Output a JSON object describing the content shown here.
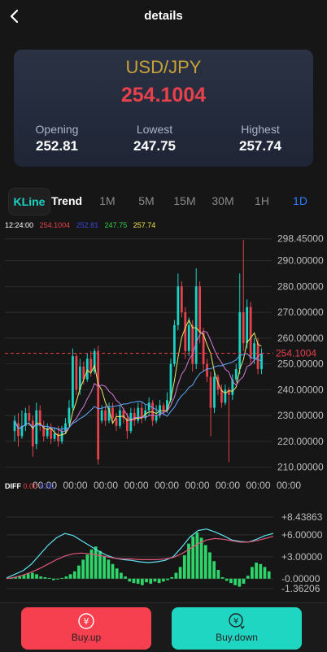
{
  "header": {
    "title": "details"
  },
  "quote": {
    "pair": "USD/JPY",
    "price": "254.1004",
    "opening_label": "Opening",
    "opening": "252.81",
    "lowest_label": "Lowest",
    "lowest": "247.75",
    "highest_label": "Highest",
    "highest": "257.74"
  },
  "tabs": [
    "KLine",
    "Trend",
    "1M",
    "5M",
    "15M",
    "30M",
    "1H",
    "1D"
  ],
  "info": {
    "time": "12:24:00",
    "v1": "254.1004",
    "v2": "252.81",
    "v3": "247.75",
    "v4": "257.74"
  },
  "price_chart": {
    "y_ticks": [
      "298.45000",
      "290.00000",
      "280.00000",
      "270.00000",
      "260.00000",
      "250.00000",
      "240.00000",
      "230.00000",
      "220.00000",
      "210.00000"
    ],
    "last_price_label": "254.1004",
    "x_ticks": [
      "00:00",
      "00:00",
      "00:00",
      "00:00",
      "00:00",
      "00:00",
      "00:00",
      "00:00",
      "00:00"
    ]
  },
  "diff_chart": {
    "label": "DIFF",
    "label_values": [
      "0.00",
      "0.00"
    ],
    "y_ticks": [
      "+8.43863",
      "+6.00000",
      "+3.00000",
      "-0.00000",
      "-1.36206"
    ]
  },
  "buttons": {
    "up": "Buy.up",
    "down": "Buy.down"
  },
  "colors": {
    "up": "#e8414b",
    "down": "#19d3c5",
    "gold": "#c9a23a",
    "accent": "#19d3c5"
  },
  "chart_data": [
    {
      "type": "candlestick",
      "yrange": [
        208,
        299
      ],
      "last_price": 254.1004,
      "candles": [
        [
          224,
          228,
          220,
          230
        ],
        [
          227,
          222,
          218,
          231
        ],
        [
          222,
          226,
          221,
          232
        ],
        [
          226,
          231,
          224,
          233
        ],
        [
          231,
          228,
          226,
          234
        ],
        [
          228,
          218,
          214,
          230
        ],
        [
          219,
          232,
          217,
          235
        ],
        [
          232,
          226,
          224,
          234
        ],
        [
          226,
          222,
          220,
          228
        ],
        [
          222,
          225,
          221,
          227
        ],
        [
          225,
          221,
          219,
          227
        ],
        [
          221,
          223,
          220,
          225
        ],
        [
          223,
          220,
          218,
          226
        ],
        [
          220,
          224,
          219,
          226
        ],
        [
          224,
          227,
          223,
          229
        ],
        [
          227,
          233,
          226,
          236
        ],
        [
          233,
          253,
          232,
          256
        ],
        [
          253,
          240,
          238,
          254
        ],
        [
          240,
          249,
          238,
          252
        ],
        [
          249,
          244,
          242,
          251
        ],
        [
          244,
          252,
          243,
          254
        ],
        [
          252,
          247,
          245,
          255
        ],
        [
          247,
          255,
          246,
          256
        ],
        [
          255,
          213,
          211,
          257
        ],
        [
          228,
          232,
          227,
          234
        ],
        [
          232,
          228,
          226,
          234
        ],
        [
          228,
          233,
          227,
          235
        ],
        [
          233,
          229,
          227,
          235
        ],
        [
          229,
          226,
          224,
          231
        ],
        [
          226,
          232,
          225,
          234
        ],
        [
          232,
          229,
          227,
          233
        ],
        [
          229,
          224,
          221,
          231
        ],
        [
          224,
          231,
          223,
          233
        ],
        [
          231,
          228,
          226,
          233
        ],
        [
          228,
          233,
          227,
          235
        ],
        [
          233,
          229,
          227,
          235
        ],
        [
          229,
          232,
          228,
          234
        ],
        [
          232,
          235,
          230,
          237
        ],
        [
          235,
          228,
          226,
          236
        ],
        [
          228,
          230,
          227,
          234
        ],
        [
          230,
          234,
          229,
          236
        ],
        [
          234,
          232,
          230,
          235
        ],
        [
          232,
          236,
          231,
          239
        ],
        [
          236,
          250,
          235,
          252
        ],
        [
          250,
          265,
          249,
          267
        ],
        [
          265,
          280,
          263,
          285
        ],
        [
          280,
          270,
          268,
          282
        ],
        [
          270,
          255,
          252,
          272
        ],
        [
          255,
          265,
          253,
          268
        ],
        [
          265,
          250,
          247,
          267
        ],
        [
          250,
          280,
          248,
          287
        ],
        [
          280,
          262,
          258,
          282
        ],
        [
          262,
          250,
          247,
          264
        ],
        [
          250,
          245,
          243,
          252
        ],
        [
          245,
          233,
          222,
          247
        ],
        [
          233,
          245,
          231,
          247
        ],
        [
          245,
          240,
          238,
          246
        ],
        [
          240,
          235,
          233,
          242
        ],
        [
          235,
          240,
          234,
          242
        ],
        [
          240,
          238,
          212,
          241
        ],
        [
          238,
          244,
          236,
          246
        ],
        [
          244,
          248,
          243,
          250
        ],
        [
          248,
          270,
          246,
          285
        ],
        [
          270,
          258,
          255,
          298
        ],
        [
          258,
          272,
          256,
          275
        ],
        [
          272,
          252,
          250,
          274
        ],
        [
          252,
          258,
          250,
          260
        ],
        [
          258,
          248,
          246,
          260
        ],
        [
          248,
          254,
          246,
          256
        ]
      ]
    },
    {
      "type": "bar",
      "label": "DIFF",
      "yrange": [
        -1.36206,
        8.43863
      ],
      "values": [
        0.1,
        0.2,
        0.3,
        0.5,
        0.7,
        0.8,
        0.6,
        0.3,
        0.2,
        0.1,
        -0.2,
        0.0,
        0.1,
        0.3,
        0.6,
        1.0,
        1.8,
        2.6,
        3.3,
        4.0,
        4.4,
        3.8,
        3.1,
        2.6,
        2.0,
        1.4,
        0.8,
        0.3,
        -0.4,
        -0.6,
        -0.7,
        -0.9,
        -0.5,
        -0.7,
        -0.4,
        -0.6,
        -0.4,
        -0.2,
        0.2,
        0.8,
        1.6,
        3.2,
        4.8,
        5.8,
        6.3,
        5.6,
        4.6,
        3.6,
        2.4,
        1.2,
        0.2,
        -0.3,
        -0.6,
        -0.9,
        -1.1,
        -0.7,
        0.4,
        1.6,
        2.2,
        2.0,
        1.6,
        1.0
      ],
      "line1": [
        0.1,
        0.6,
        1.1,
        2.0,
        3.3,
        4.6,
        5.6,
        6.2,
        5.9,
        5.2,
        4.5,
        3.8,
        3.2,
        2.8,
        2.6,
        2.5,
        2.3,
        2.2,
        2.3,
        2.5,
        3.0,
        4.3,
        5.7,
        6.6,
        6.8,
        6.4,
        5.9,
        5.3,
        5.1,
        5.0,
        5.4,
        5.9,
        6.2
      ],
      "line2": [
        0.0,
        0.2,
        0.5,
        0.9,
        1.4,
        2.0,
        2.6,
        3.1,
        3.4,
        3.5,
        3.4,
        3.2,
        3.0,
        2.8,
        2.7,
        2.7,
        2.6,
        2.6,
        2.6,
        2.7,
        2.9,
        3.4,
        4.1,
        4.8,
        5.3,
        5.5,
        5.4,
        5.2,
        5.0,
        5.0,
        5.2,
        5.5,
        5.8
      ]
    }
  ]
}
